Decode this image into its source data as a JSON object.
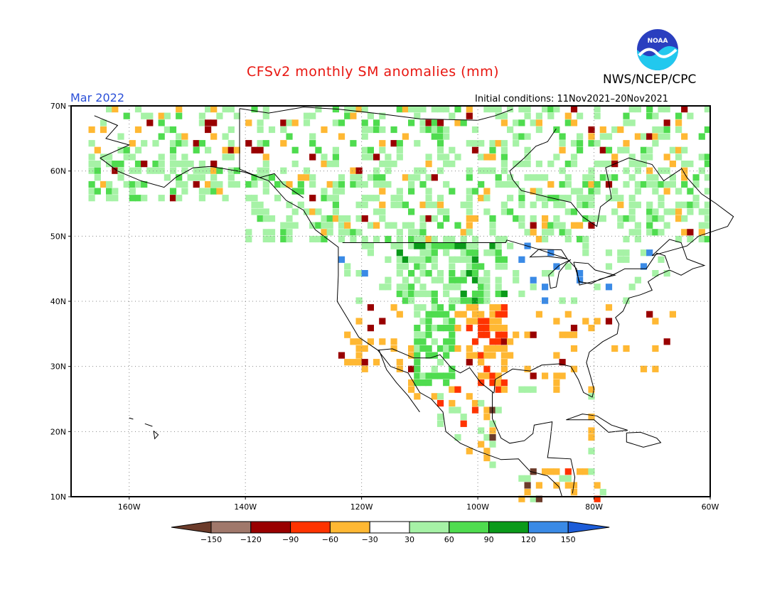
{
  "title": "CFSv2 monthly SM anomalies (mm)",
  "valid_month": "Mar 2022",
  "agency": "NWS/NCEP/CPC",
  "initial_conditions": "Initial conditions: 11Nov2021–20Nov2021",
  "logo": {
    "text": "NOAA",
    "icon": "noaa-logo-icon"
  },
  "map": {
    "lat_labels": [
      "70N",
      "60N",
      "50N",
      "40N",
      "30N",
      "20N",
      "10N"
    ],
    "lon_labels": [
      "160W",
      "140W",
      "120W",
      "100W",
      "80W",
      "60W"
    ],
    "lat_range": [
      10,
      70
    ],
    "lon_range": [
      -170,
      -60
    ],
    "grid": "dotted"
  },
  "colorbar": {
    "labels": [
      "−150",
      "−120",
      "−90",
      "−60",
      "−30",
      "30",
      "60",
      "90",
      "120",
      "150"
    ],
    "colors": [
      "#6b3b2a",
      "#a0786b",
      "#990000",
      "#ff3300",
      "#ffb833",
      "#ffffff",
      "#a6f2a6",
      "#4fdc4f",
      "#0a9a1a",
      "#3a8ae6",
      "#1c5cd8"
    ]
  }
}
